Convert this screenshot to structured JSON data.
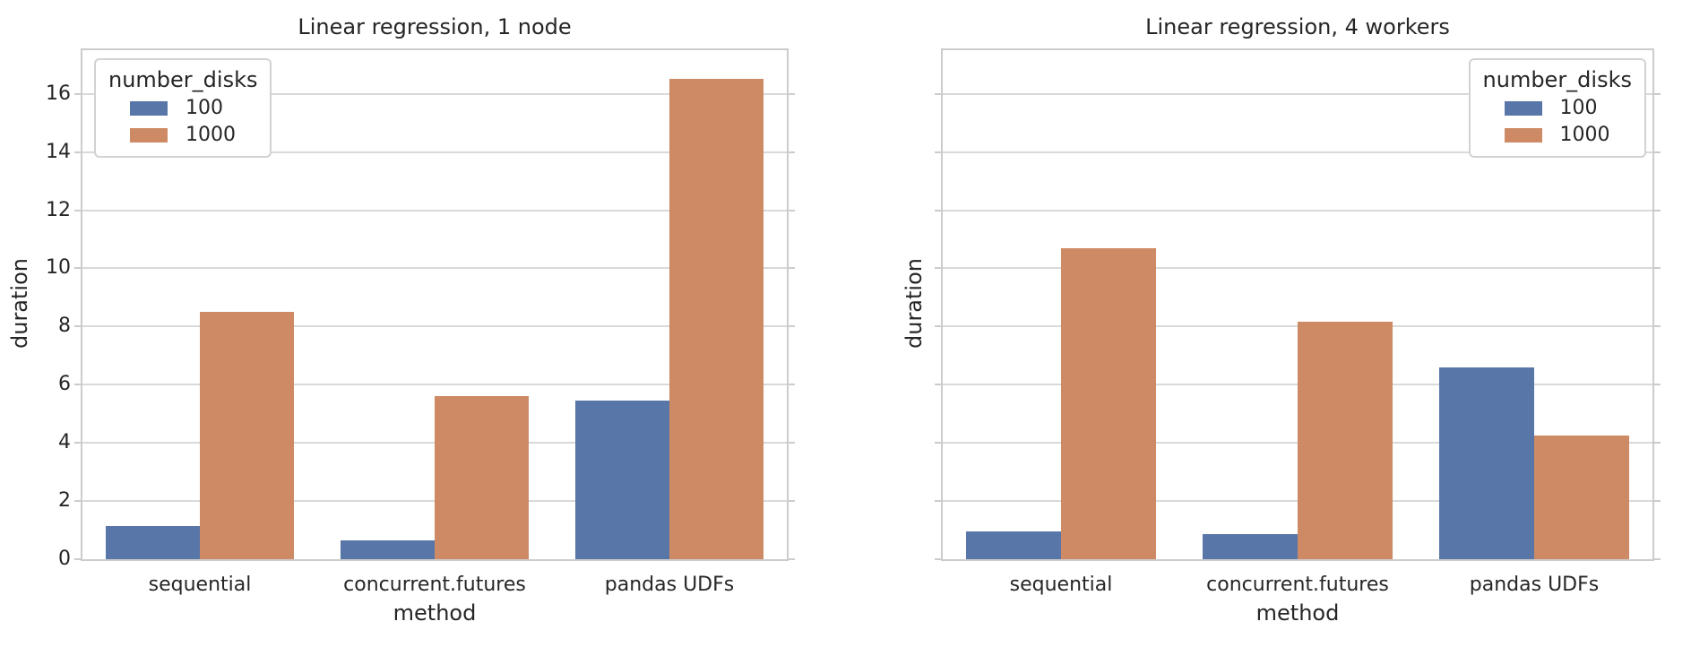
{
  "figure": {
    "background": "#ffffff"
  },
  "style": {
    "grid_color": "#d9d9d9",
    "spine_color": "#cccccc",
    "text_color": "#262626",
    "blue": "#5876A8",
    "orange": "#CD8A64"
  },
  "chart_data": [
    {
      "type": "bar",
      "title": "Linear regression, 1 node",
      "xlabel": "method",
      "ylabel": "duration",
      "categories": [
        "sequential",
        "concurrent.futures",
        "pandas UDFs"
      ],
      "series": [
        {
          "name": "100",
          "color": "#5876A8",
          "values": [
            1.15,
            0.65,
            5.45
          ]
        },
        {
          "name": "1000",
          "color": "#CD8A64",
          "values": [
            8.5,
            5.6,
            16.5
          ]
        }
      ],
      "ylim": [
        0,
        17.5
      ],
      "yticks": [
        0,
        2,
        4,
        6,
        8,
        10,
        12,
        14,
        16
      ],
      "show_ytick_labels": true,
      "grid": true,
      "legend": {
        "title": "number_disks",
        "position": "top-left",
        "entries": [
          "100",
          "1000"
        ]
      }
    },
    {
      "type": "bar",
      "title": "Linear regression, 4 workers",
      "xlabel": "method",
      "ylabel": "duration",
      "categories": [
        "sequential",
        "concurrent.futures",
        "pandas UDFs"
      ],
      "series": [
        {
          "name": "100",
          "color": "#5876A8",
          "values": [
            0.95,
            0.85,
            6.6
          ]
        },
        {
          "name": "1000",
          "color": "#CD8A64",
          "values": [
            10.7,
            8.15,
            4.25
          ]
        }
      ],
      "ylim": [
        0,
        17.5
      ],
      "yticks": [
        0,
        2,
        4,
        6,
        8,
        10,
        12,
        14,
        16
      ],
      "show_ytick_labels": false,
      "grid": true,
      "legend": {
        "title": "number_disks",
        "position": "top-right",
        "entries": [
          "100",
          "1000"
        ]
      }
    }
  ]
}
